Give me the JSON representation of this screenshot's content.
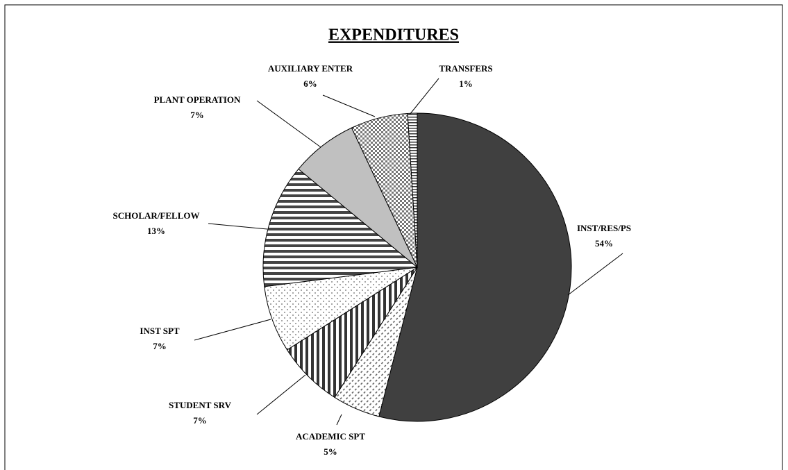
{
  "chart_data": {
    "type": "pie",
    "title": "EXPENDITURES",
    "categories": [
      "INST/RES/PS",
      "ACADEMIC SPT",
      "STUDENT SRV",
      "INST SPT",
      "SCHOLAR/FELLOW",
      "PLANT OPERATION",
      "AUXILIARY ENTER",
      "TRANSFERS"
    ],
    "values": [
      54,
      5,
      7,
      7,
      13,
      7,
      6,
      1
    ],
    "value_labels": [
      "54%",
      "5%",
      "7%",
      "7%",
      "13%",
      "7%",
      "6%",
      "1%"
    ]
  }
}
